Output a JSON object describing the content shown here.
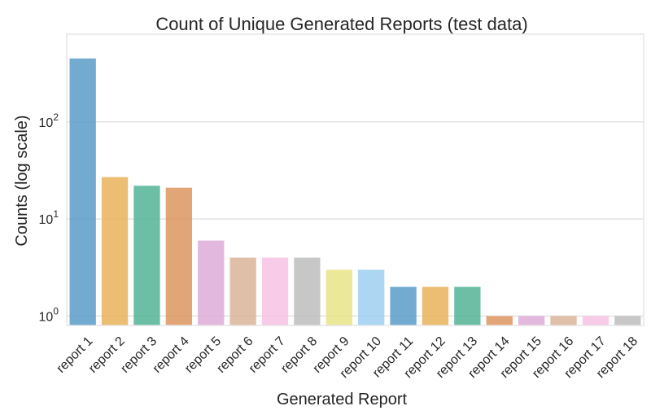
{
  "chart_data": {
    "type": "bar",
    "title": "Count of Unique Generated Reports (test data)",
    "xlabel": "Generated Report",
    "ylabel": "Counts (log scale)",
    "yscale": "log",
    "ylim": [
      0.8,
      800
    ],
    "grid": true,
    "categories": [
      "report 1",
      "report 2",
      "report 3",
      "report 4",
      "report 5",
      "report 6",
      "report 7",
      "report 8",
      "report 9",
      "report 10",
      "report 11",
      "report 12",
      "report 13",
      "report 14",
      "report 15",
      "report 16",
      "report 17",
      "report 18"
    ],
    "values": [
      450,
      27,
      22,
      21,
      6,
      4,
      4,
      4,
      3,
      3,
      2,
      2,
      2,
      1,
      1,
      1,
      1,
      1
    ],
    "yticks": [
      {
        "value": 1,
        "base": "10",
        "exp": "0"
      },
      {
        "value": 10,
        "base": "10",
        "exp": "1"
      },
      {
        "value": 100,
        "base": "10",
        "exp": "2"
      }
    ],
    "colors": [
      "#5b9bc7",
      "#e8b35a",
      "#52b394",
      "#dd955f",
      "#deabd9",
      "#dab49a",
      "#f7c2e5",
      "#bdbdbd",
      "#e7e487",
      "#9dcfef",
      "#5b9bc7",
      "#e8b35a",
      "#52b394",
      "#dd955f",
      "#deabd9",
      "#dab49a",
      "#f7c2e5",
      "#bdbdbd"
    ]
  }
}
